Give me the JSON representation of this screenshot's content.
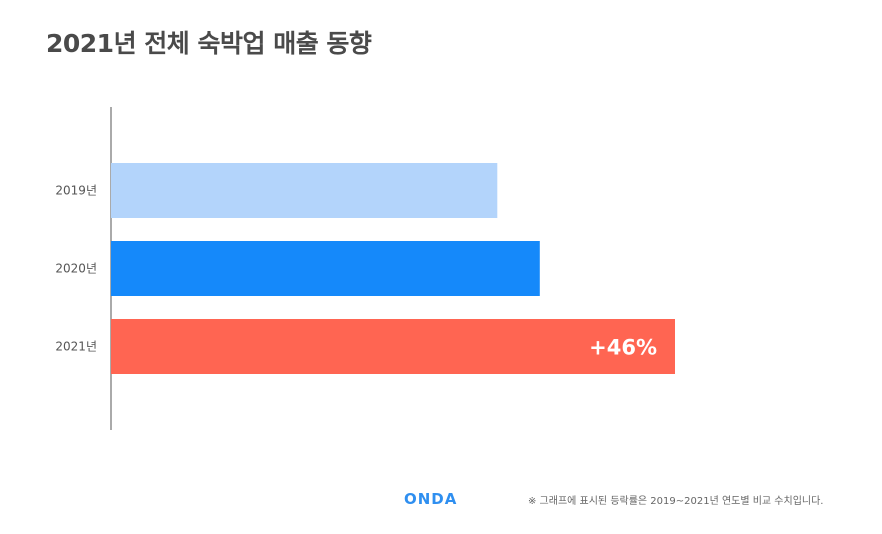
{
  "title": "2021년 전체 숙박업 매출 동향",
  "chart_data": {
    "type": "bar",
    "orientation": "horizontal",
    "categories": [
      "2019년",
      "2020년",
      "2021년"
    ],
    "values": [
      100,
      111,
      146
    ],
    "colors": [
      "#b3d4fb",
      "#1589fa",
      "#ff6552"
    ],
    "data_labels": [
      "",
      "",
      "+46%"
    ],
    "title": "2021년 전체 숙박업 매출 동향",
    "xlabel": "",
    "ylabel": "",
    "xlim": [
      0,
      146
    ],
    "grid": false
  },
  "footer": {
    "logo": "ONDA",
    "note": "※ 그래프에 표시된 등락률은 2019~2021년 연도별 비교 수치입니다."
  }
}
